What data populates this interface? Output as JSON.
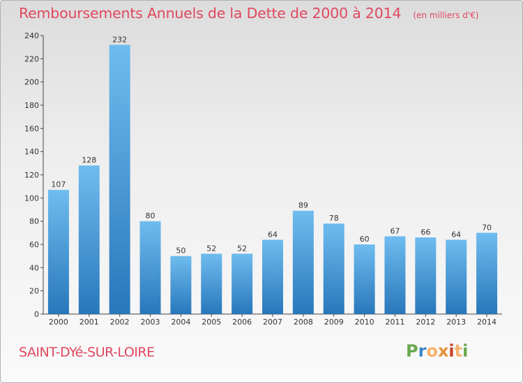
{
  "header": {
    "title": "Remboursements Annuels de la Dette de 2000 à 2014",
    "subtitle": "(en milliers d'€)"
  },
  "footer": {
    "commune": "SAINT-DYé-SUR-LOIRE",
    "brand": "Proxiti"
  },
  "colors": {
    "title": "#e0485e",
    "bar_top": "#6fbcef",
    "bar_bottom": "#2877bb"
  },
  "chart_data": {
    "type": "bar",
    "title": "Remboursements Annuels de la Dette de 2000 à 2014",
    "subtitle": "(en milliers d'€)",
    "xlabel": "",
    "ylabel": "",
    "categories": [
      "2000",
      "2001",
      "2002",
      "2003",
      "2004",
      "2005",
      "2006",
      "2007",
      "2008",
      "2009",
      "2010",
      "2011",
      "2012",
      "2013",
      "2014"
    ],
    "values": [
      107,
      128,
      232,
      80,
      50,
      52,
      52,
      64,
      89,
      78,
      60,
      67,
      66,
      64,
      70
    ],
    "ylim": [
      0,
      240
    ],
    "yticks": [
      0,
      20,
      40,
      60,
      80,
      100,
      120,
      140,
      160,
      180,
      200,
      220,
      240
    ],
    "grid": false,
    "legend": "none"
  }
}
